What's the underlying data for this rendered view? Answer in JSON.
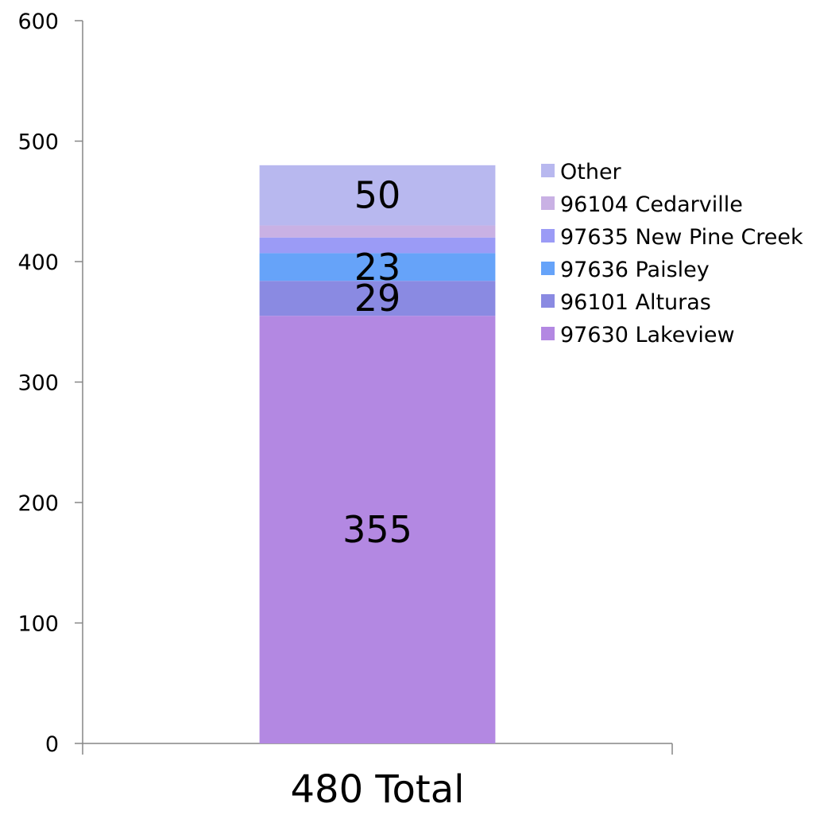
{
  "chart_data": {
    "type": "bar",
    "stacked": true,
    "title": "",
    "xlabel": "",
    "ylabel": "",
    "categories": [
      "480 Total"
    ],
    "ylim": [
      0,
      600
    ],
    "yticks": [
      0,
      100,
      200,
      300,
      400,
      500,
      600
    ],
    "grid": false,
    "legend_position": "right",
    "series": [
      {
        "name": "97630 Lakeview",
        "values": [
          355
        ],
        "color": "#b388e2",
        "label": "355"
      },
      {
        "name": "96101 Alturas",
        "values": [
          29
        ],
        "color": "#8a8ae2",
        "label": "29"
      },
      {
        "name": "97636 Paisley",
        "values": [
          23
        ],
        "color": "#66a3f9",
        "label": "23"
      },
      {
        "name": "97635 New Pine Creek",
        "values": [
          13
        ],
        "color": "#9b9bf6",
        "label": ""
      },
      {
        "name": "96104 Cedarville",
        "values": [
          10
        ],
        "color": "#c9b1e4",
        "label": ""
      },
      {
        "name": "Other",
        "values": [
          50
        ],
        "color": "#b8b8ef",
        "label": "50"
      }
    ]
  }
}
